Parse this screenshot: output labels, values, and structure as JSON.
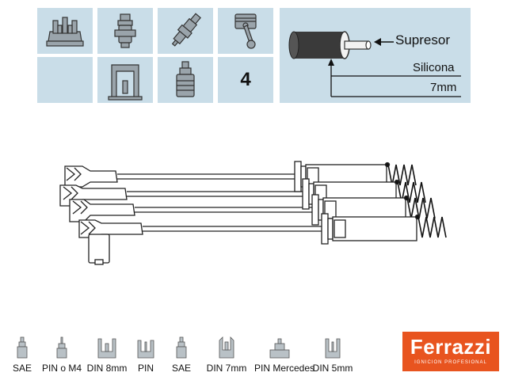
{
  "grid": {
    "cylinders": "4",
    "icons_top": [
      "distributor-cap-icon",
      "ignition-coil-icon",
      "spark-plug-icon",
      "piston-icon"
    ],
    "icons_bottom": [
      "coil-socket-icon",
      "spark-plug-terminal-icon"
    ]
  },
  "spec": {
    "supresor_label": "Supresor",
    "material_label": "Silicona",
    "diameter_label": "7mm"
  },
  "legend": {
    "items": [
      {
        "label": "SAE",
        "icon": "sae-terminal-icon"
      },
      {
        "label": "PIN o M4",
        "icon": "pin-m4-terminal-icon"
      },
      {
        "label": "DIN 8mm",
        "icon": "din-8mm-terminal-icon"
      },
      {
        "label": "PIN",
        "icon": "pin-terminal-icon"
      },
      {
        "label": "SAE",
        "icon": "sae-terminal-icon"
      },
      {
        "label": "DIN 7mm",
        "icon": "din-7mm-terminal-icon"
      },
      {
        "label": "PIN Mercedes",
        "icon": "pin-mercedes-terminal-icon"
      },
      {
        "label": "DIN 5mm",
        "icon": "din-5mm-terminal-icon"
      }
    ]
  },
  "brand": {
    "name": "Ferrazzi",
    "tagline": "IGNICION PROFESIONAL",
    "color": "#e8541f"
  },
  "colors": {
    "panel": "#c9dde8"
  }
}
